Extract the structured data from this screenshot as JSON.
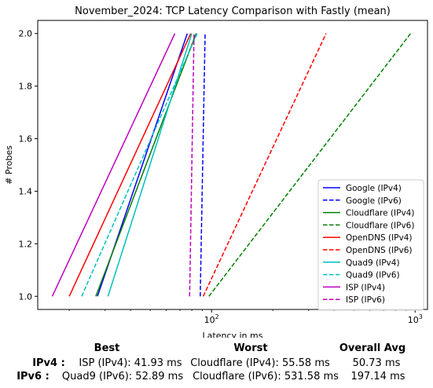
{
  "chart_data": {
    "type": "line",
    "title": "November_2024: TCP Latency Comparison with Fastly (mean)",
    "xlabel": "Latency in ms",
    "ylabel": "# Probes",
    "xscale": "log",
    "xlim": [
      14,
      1150
    ],
    "ylim": [
      0.95,
      2.05
    ],
    "x_ticks": [
      {
        "value": 100,
        "base": "10",
        "exp": "2"
      },
      {
        "value": 1000,
        "base": "10",
        "exp": "3"
      }
    ],
    "y_ticks": [
      "1.0",
      "1.2",
      "1.4",
      "1.6",
      "1.8",
      "2.0"
    ],
    "legend_position": "lower-right",
    "grid": false,
    "series": [
      {
        "name": "Google (IPv4)",
        "color": "#0000ff",
        "dash": "solid",
        "points": [
          [
            27.5,
            1.0
          ],
          [
            76,
            2.0
          ]
        ]
      },
      {
        "name": "Google (IPv6)",
        "color": "#0000ff",
        "dash": "dashed",
        "points": [
          [
            88,
            1.0
          ],
          [
            93,
            2.0
          ]
        ]
      },
      {
        "name": "Cloudflare (IPv4)",
        "color": "#008000",
        "dash": "solid",
        "points": [
          [
            27,
            1.0
          ],
          [
            84,
            2.0
          ]
        ]
      },
      {
        "name": "Cloudflare (IPv6)",
        "color": "#008000",
        "dash": "dashed",
        "points": [
          [
            97,
            1.0
          ],
          [
            950,
            2.0
          ]
        ]
      },
      {
        "name": "OpenDNS (IPv4)",
        "color": "#ff0000",
        "dash": "solid",
        "points": [
          [
            20,
            1.0
          ],
          [
            79,
            2.0
          ]
        ]
      },
      {
        "name": "OpenDNS (IPv6)",
        "color": "#ff0000",
        "dash": "dashed",
        "points": [
          [
            91,
            1.0
          ],
          [
            365,
            2.0
          ]
        ]
      },
      {
        "name": "Quad9 (IPv4)",
        "color": "#00bfbf",
        "dash": "solid",
        "points": [
          [
            31,
            1.0
          ],
          [
            80,
            2.0
          ]
        ]
      },
      {
        "name": "Quad9 (IPv6)",
        "color": "#00bfbf",
        "dash": "dashed",
        "points": [
          [
            23,
            1.0
          ],
          [
            85,
            2.0
          ]
        ]
      },
      {
        "name": "ISP (IPv4)",
        "color": "#bf00bf",
        "dash": "solid",
        "points": [
          [
            16.5,
            1.0
          ],
          [
            66,
            2.0
          ]
        ]
      },
      {
        "name": "ISP (IPv6)",
        "color": "#bf00bf",
        "dash": "dashed",
        "points": [
          [
            78,
            1.0
          ],
          [
            82,
            2.0
          ]
        ]
      }
    ]
  },
  "summary": {
    "headers": {
      "best": "Best",
      "worst": "Worst",
      "avg": "Overall Avg"
    },
    "rows": [
      {
        "label": "IPv4 :",
        "best": "ISP (IPv4): 41.93 ms",
        "worst": "Cloudflare (IPv4): 55.58 ms",
        "avg": "50.73 ms"
      },
      {
        "label": "IPv6 :",
        "best": "Quad9 (IPv6): 52.89 ms",
        "worst": "Cloudflare (IPv6): 531.58 ms",
        "avg": "197.14 ms"
      }
    ]
  }
}
